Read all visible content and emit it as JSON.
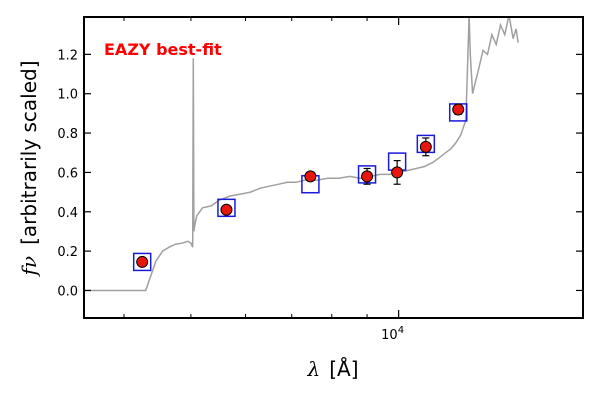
{
  "chart_data": {
    "type": "scatter",
    "title": "",
    "xlabel_symbol": "λ",
    "xlabel_unit": "[Å]",
    "ylabel_symbol": "fν",
    "ylabel_text": "[arbitrarily scaled]",
    "x_scale": "log",
    "xlim": [
      3500,
      18500
    ],
    "ylim": [
      -0.14,
      1.39
    ],
    "yticks": [
      0.0,
      0.2,
      0.4,
      0.6,
      0.8,
      1.0,
      1.2
    ],
    "ytick_labels": [
      "0.0",
      "0.2",
      "0.4",
      "0.6",
      "0.8",
      "1.0",
      "1.2"
    ],
    "xtick_major": [
      10000
    ],
    "xtick_major_base": "10",
    "xtick_major_exp": "4",
    "xtick_minor": [
      4000,
      5000,
      6000,
      7000,
      8000,
      9000
    ],
    "grid": false,
    "annotation": "EAZY best-fit",
    "colors": {
      "points": "#e8140e",
      "boxes": "#1a1adc",
      "sed": "#a0a0a0",
      "annotation": "#ff0000"
    },
    "observed": {
      "x": [
        4250,
        5630,
        7450,
        9000,
        9950,
        10950,
        12200
      ],
      "y": [
        0.145,
        0.41,
        0.58,
        0.58,
        0.6,
        0.73,
        0.92
      ],
      "yerr": [
        0.015,
        0.02,
        0.02,
        0.04,
        0.06,
        0.045,
        0.025
      ]
    },
    "model_photometry": {
      "x": [
        4250,
        5630,
        7450,
        9000,
        9950,
        10950,
        12200
      ],
      "y": [
        0.145,
        0.42,
        0.54,
        0.59,
        0.655,
        0.745,
        0.905
      ]
    },
    "sed_curve": {
      "x": [
        3500,
        3620,
        3700,
        3780,
        3850,
        3920,
        4000,
        4100,
        4200,
        4300,
        4450,
        4550,
        4650,
        4750,
        4850,
        4950,
        5000,
        5030,
        5040,
        5050,
        5070,
        5100,
        5200,
        5350,
        5500,
        5700,
        5900,
        6100,
        6300,
        6500,
        6700,
        6900,
        7100,
        7300,
        7600,
        7900,
        8200,
        8500,
        8800,
        9100,
        9400,
        9700,
        10000,
        10300,
        10600,
        10900,
        11200,
        11500,
        11700,
        11900,
        12100,
        12300,
        12500,
        12550,
        12600,
        12650,
        12700,
        12800,
        12900,
        13050,
        13250,
        13450,
        13650,
        13850,
        14050,
        14250,
        14450,
        14650,
        14800,
        14900
      ],
      "y": [
        0.0,
        0.0,
        0.0,
        0.0,
        0.0,
        0.0,
        0.0,
        0.0,
        0.0,
        0.0,
        0.15,
        0.2,
        0.22,
        0.235,
        0.24,
        0.25,
        0.24,
        0.22,
        1.18,
        0.3,
        0.34,
        0.38,
        0.42,
        0.43,
        0.46,
        0.48,
        0.49,
        0.5,
        0.52,
        0.53,
        0.54,
        0.55,
        0.55,
        0.56,
        0.56,
        0.57,
        0.57,
        0.58,
        0.57,
        0.58,
        0.59,
        0.59,
        0.6,
        0.61,
        0.62,
        0.63,
        0.65,
        0.68,
        0.7,
        0.72,
        0.75,
        0.79,
        0.86,
        1.0,
        1.2,
        1.4,
        1.2,
        1.0,
        1.05,
        1.12,
        1.22,
        1.2,
        1.3,
        1.25,
        1.35,
        1.3,
        1.4,
        1.28,
        1.33,
        1.26
      ]
    }
  }
}
